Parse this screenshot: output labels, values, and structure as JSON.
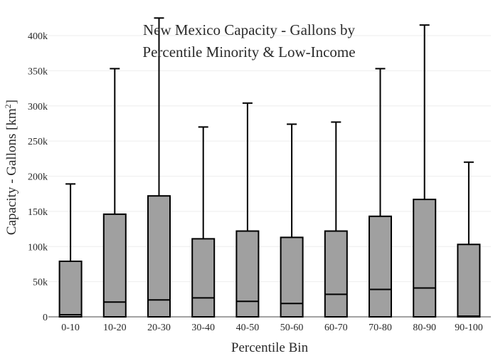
{
  "chart_data": {
    "type": "box",
    "title_lines": [
      "New Mexico Capacity - Gallons by",
      "Percentile Minority & Low-Income"
    ],
    "xlabel": "Percentile Bin",
    "ylabel_main": "Capacity - Gallons  [km",
    "ylabel_sup": "2",
    "ylabel_end": "]",
    "ylim": [
      0,
      400000
    ],
    "ytick_values": [
      0,
      50000,
      100000,
      150000,
      200000,
      250000,
      300000,
      350000,
      400000
    ],
    "ytick_labels": [
      "0",
      "50k",
      "100k",
      "150k",
      "200k",
      "250k",
      "300k",
      "350k",
      "400k"
    ],
    "grid": "horizontal",
    "categories": [
      "0-10",
      "10-20",
      "20-30",
      "30-40",
      "40-50",
      "50-60",
      "60-70",
      "70-80",
      "80-90",
      "90-100"
    ],
    "series": [
      {
        "boxes": [
          {
            "q1": 0,
            "median": 3000,
            "q3": 79000,
            "whisker_low": 0,
            "whisker_high": 189000
          },
          {
            "q1": 0,
            "median": 21000,
            "q3": 146000,
            "whisker_low": 0,
            "whisker_high": 353000
          },
          {
            "q1": 0,
            "median": 24000,
            "q3": 172000,
            "whisker_low": 0,
            "whisker_high": 425000
          },
          {
            "q1": 0,
            "median": 27000,
            "q3": 111000,
            "whisker_low": 0,
            "whisker_high": 270000
          },
          {
            "q1": 0,
            "median": 22000,
            "q3": 122000,
            "whisker_low": 0,
            "whisker_high": 304000
          },
          {
            "q1": 0,
            "median": 19000,
            "q3": 113000,
            "whisker_low": 0,
            "whisker_high": 274000
          },
          {
            "q1": 0,
            "median": 32000,
            "q3": 122000,
            "whisker_low": 0,
            "whisker_high": 277000
          },
          {
            "q1": 0,
            "median": 39000,
            "q3": 143000,
            "whisker_low": 0,
            "whisker_high": 353000
          },
          {
            "q1": 0,
            "median": 41000,
            "q3": 167000,
            "whisker_low": 0,
            "whisker_high": 415000
          },
          {
            "q1": 0,
            "median": 1000,
            "q3": 103000,
            "whisker_low": 0,
            "whisker_high": 220000
          }
        ]
      }
    ],
    "colors": {
      "box_fill": "#a0a0a0",
      "box_line": "#000000",
      "grid": "#eeeeee",
      "text": "#2a2a2a"
    }
  }
}
